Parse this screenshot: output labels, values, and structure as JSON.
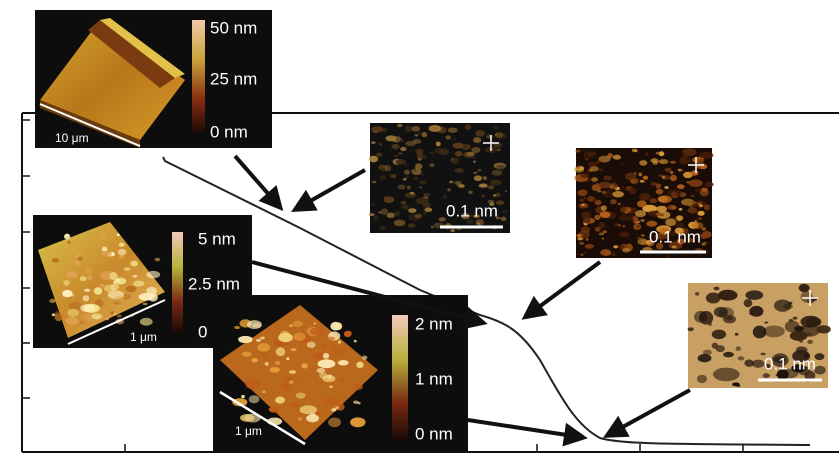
{
  "insets": [
    {
      "colorbar": [
        "50 nm",
        "25 nm",
        "0 nm"
      ],
      "scale": "10 μm"
    },
    {
      "scale": "0.1 nm"
    },
    {
      "scale": "0.1 nm"
    },
    {
      "scale": "0.1 nm"
    },
    {
      "colorbar": [
        "5 nm",
        "2.5 nm",
        "0"
      ],
      "scale": "1 μm"
    },
    {
      "colorbar": [
        "2 nm",
        "1 nm",
        "0 nm"
      ],
      "scale": "1 μm"
    }
  ]
}
